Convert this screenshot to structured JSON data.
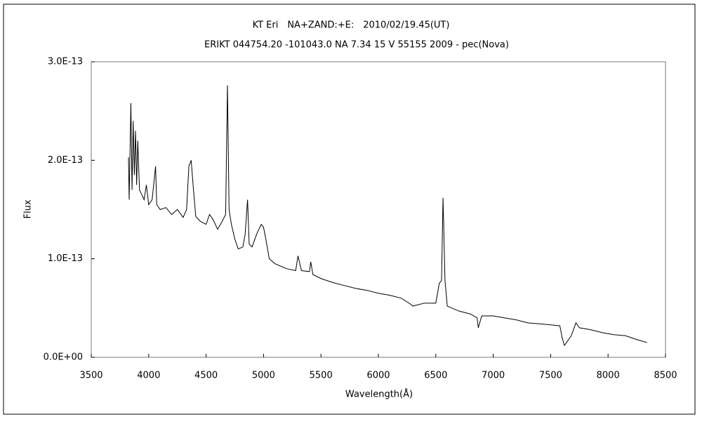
{
  "chart_data": {
    "type": "line",
    "title": "KT Eri　NA+ZAND:+E:　2010/02/19.45(UT)",
    "subtitle": "ERIKT 044754.20 -101043.0 NA 7.34 15 V 55155 2009 - pec(Nova)",
    "x_label": "Wavelength(Å)",
    "y_label": "Flux",
    "color": "#000000",
    "xlim": [
      3500,
      8500
    ],
    "xticks": [
      3500,
      4000,
      4500,
      5000,
      5500,
      6000,
      6500,
      7000,
      7500,
      8000,
      8500
    ],
    "ylim": [
      0,
      3e-13
    ],
    "yticks": [
      {
        "value": 0,
        "label": "0.0E+00"
      },
      {
        "value": 1e-13,
        "label": "1.0E-13"
      },
      {
        "value": 2e-13,
        "label": "2.0E-13"
      },
      {
        "value": 3e-13,
        "label": "3.0E-13"
      }
    ],
    "x": [
      3824,
      3830,
      3845,
      3855,
      3865,
      3875,
      3885,
      3895,
      3905,
      3920,
      3940,
      3960,
      3980,
      4000,
      4030,
      4060,
      4070,
      4100,
      4150,
      4200,
      4250,
      4300,
      4330,
      4350,
      4370,
      4390,
      4410,
      4450,
      4500,
      4530,
      4560,
      4600,
      4640,
      4670,
      4686,
      4700,
      4720,
      4750,
      4780,
      4820,
      4840,
      4861,
      4875,
      4900,
      4940,
      4980,
      5000,
      5020,
      5050,
      5100,
      5200,
      5280,
      5300,
      5330,
      5400,
      5411,
      5430,
      5500,
      5600,
      5700,
      5800,
      5900,
      6000,
      6100,
      6200,
      6280,
      6300,
      6400,
      6500,
      6530,
      6550,
      6563,
      6580,
      6600,
      6700,
      6800,
      6860,
      6870,
      6900,
      7000,
      7100,
      7200,
      7300,
      7400,
      7500,
      7580,
      7600,
      7620,
      7680,
      7720,
      7750,
      7850,
      7950,
      8050,
      8150,
      8250,
      8340
    ],
    "values": [
      2.03e-13,
      1.6e-13,
      2.58e-13,
      1.7e-13,
      2.4e-13,
      1.85e-13,
      2.3e-13,
      1.75e-13,
      2.2e-13,
      1.7e-13,
      1.65e-13,
      1.6e-13,
      1.75e-13,
      1.55e-13,
      1.6e-13,
      1.94e-13,
      1.55e-13,
      1.5e-13,
      1.52e-13,
      1.45e-13,
      1.5e-13,
      1.42e-13,
      1.5e-13,
      1.94e-13,
      2e-13,
      1.7e-13,
      1.43e-13,
      1.38e-13,
      1.35e-13,
      1.45e-13,
      1.4e-13,
      1.3e-13,
      1.38e-13,
      1.45e-13,
      2.76e-13,
      1.5e-13,
      1.35e-13,
      1.2e-13,
      1.1e-13,
      1.12e-13,
      1.25e-13,
      1.6e-13,
      1.15e-13,
      1.12e-13,
      1.25e-13,
      1.35e-13,
      1.32e-13,
      1.2e-13,
      1e-13,
      9.5e-14,
      9e-14,
      8.8e-14,
      1.03e-13,
      8.8e-14,
      8.7e-14,
      9.7e-14,
      8.4e-14,
      8e-14,
      7.6e-14,
      7.3e-14,
      7e-14,
      6.8e-14,
      6.5e-14,
      6.3e-14,
      6e-14,
      5.4e-14,
      5.2e-14,
      5.5e-14,
      5.5e-14,
      7.5e-14,
      7.8e-14,
      1.62e-13,
      7.8e-14,
      5.2e-14,
      4.7e-14,
      4.4e-14,
      4e-14,
      3e-14,
      4.2e-14,
      4.2e-14,
      4e-14,
      3.8e-14,
      3.5e-14,
      3.4e-14,
      3.3e-14,
      3.2e-14,
      2e-14,
      1.2e-14,
      2.2e-14,
      3.5e-14,
      3e-14,
      2.8e-14,
      2.5e-14,
      2.3e-14,
      2.2e-14,
      1.8e-14,
      1.5e-14
    ]
  }
}
